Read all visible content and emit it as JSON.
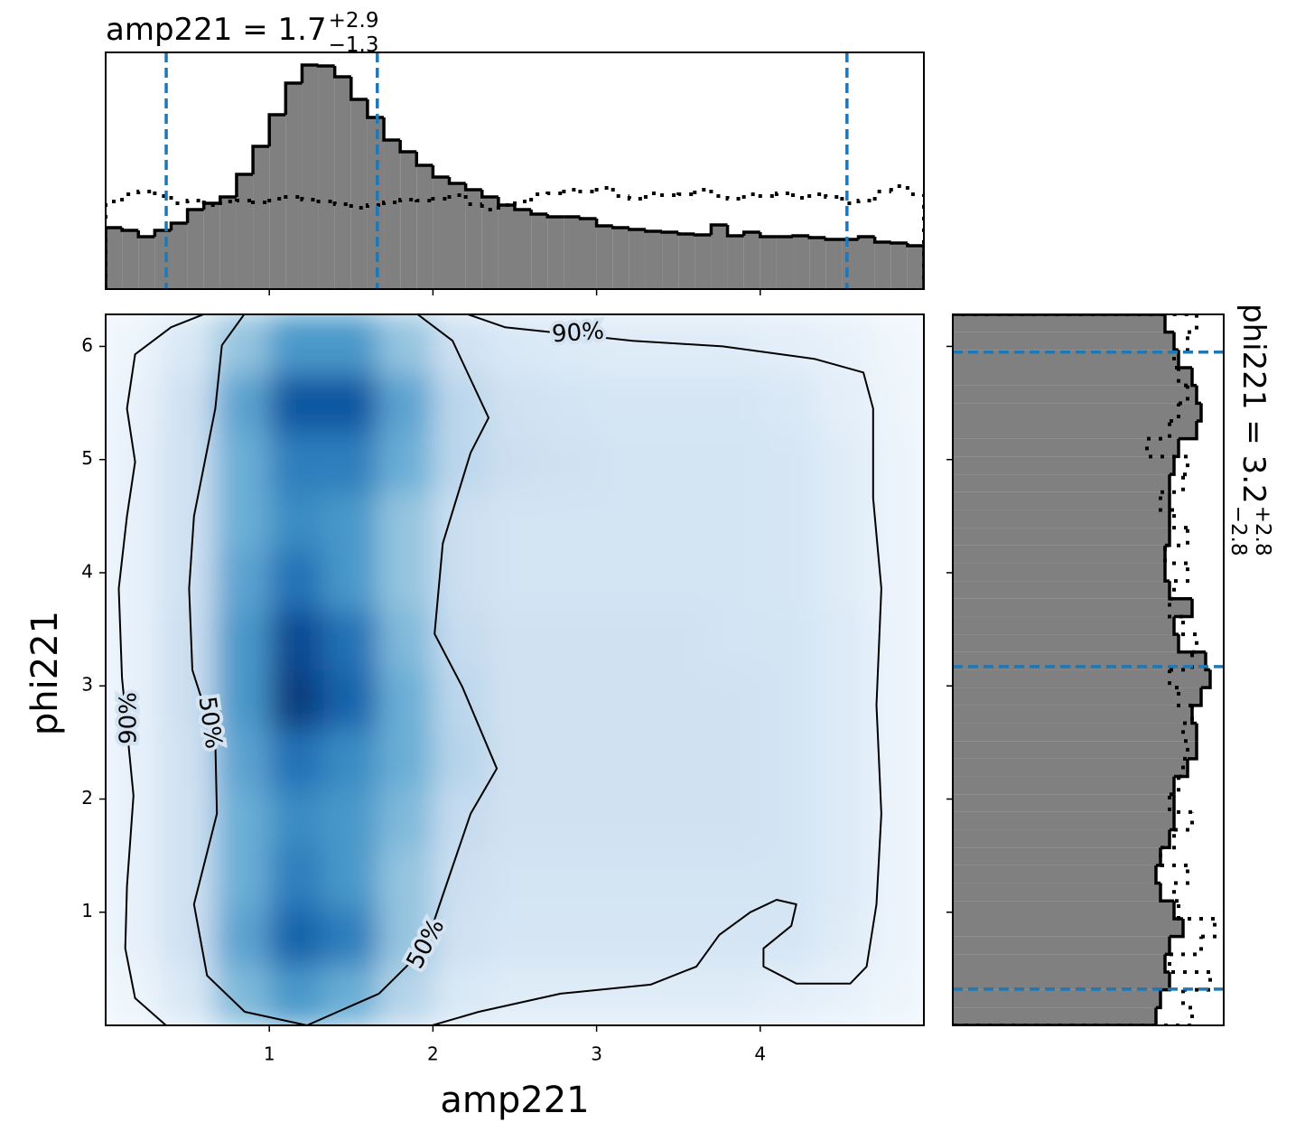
{
  "chart_data": [
    {
      "type": "histogram",
      "orientation": "vertical",
      "title": {
        "text": "amp221 = 1.7",
        "sup": "+2.9",
        "sub": "−1.3"
      },
      "bins": [
        0,
        0.1,
        0.2,
        0.3,
        0.4,
        0.5,
        0.6,
        0.7,
        0.8,
        0.9,
        1.0,
        1.1,
        1.2,
        1.3,
        1.4,
        1.5,
        1.6,
        1.7,
        1.8,
        1.9,
        2.0,
        2.1,
        2.2,
        2.3,
        2.4,
        2.5,
        2.6,
        2.7,
        2.8,
        2.9,
        3.0,
        3.1,
        3.2,
        3.3,
        3.4,
        3.5,
        3.6,
        3.7,
        3.8,
        3.9,
        4.0,
        4.1,
        4.2,
        4.3,
        4.4,
        4.5,
        4.6,
        4.7,
        4.8,
        4.9,
        5.0
      ],
      "values": [
        0.68,
        0.65,
        0.58,
        0.65,
        0.73,
        0.88,
        0.95,
        1.02,
        1.27,
        1.58,
        1.93,
        2.28,
        2.48,
        2.47,
        2.35,
        2.1,
        1.9,
        1.65,
        1.52,
        1.37,
        1.24,
        1.17,
        1.1,
        1.02,
        0.93,
        0.88,
        0.83,
        0.8,
        0.8,
        0.78,
        0.7,
        0.68,
        0.66,
        0.64,
        0.63,
        0.61,
        0.6,
        0.71,
        0.59,
        0.63,
        0.58,
        0.58,
        0.59,
        0.57,
        0.55,
        0.55,
        0.58,
        0.52,
        0.51,
        0.48
      ],
      "prior_values": [
        0.97,
        1.05,
        1.08,
        1.03,
        0.95,
        0.98,
        0.93,
        0.97,
        0.98,
        0.96,
        1.0,
        1.02,
        0.99,
        0.97,
        0.94,
        0.9,
        0.93,
        0.96,
        0.99,
        0.98,
        1.0,
        1.04,
        0.94,
        0.88,
        0.93,
        0.97,
        1.05,
        1.06,
        1.1,
        1.08,
        1.12,
        1.03,
        1.0,
        1.06,
        1.04,
        1.05,
        1.1,
        1.03,
        1.0,
        1.05,
        1.03,
        1.06,
        1.01,
        1.05,
        1.02,
        0.95,
        0.98,
        1.08,
        1.14,
        1.05
      ],
      "color": "#808080",
      "edgecolor": "#000000",
      "quantiles": [
        0.37,
        1.66,
        4.53
      ],
      "quantile_color": "#1f77b4",
      "xlim": [
        0,
        5
      ],
      "ylim": [
        0,
        2.62
      ]
    },
    {
      "type": "density",
      "xlabel": "amp221",
      "ylabel": "phi221",
      "xlim": [
        0,
        5
      ],
      "ylim": [
        0,
        6.283
      ],
      "xticks": [
        1,
        2,
        3,
        4
      ],
      "yticks": [
        1,
        2,
        3,
        4,
        5,
        6
      ],
      "xedges": [
        0,
        0.333,
        0.667,
        1,
        1.333,
        1.667,
        2,
        2.333,
        2.667,
        3,
        3.333,
        3.667,
        4,
        4.333,
        4.667,
        5
      ],
      "yedges": [
        0,
        0.524,
        1.047,
        1.571,
        2.094,
        2.618,
        3.142,
        3.665,
        4.189,
        4.712,
        5.236,
        5.76,
        6.283
      ],
      "z": [
        [
          0.05,
          0.15,
          0.45,
          0.6,
          0.5,
          0.3,
          0.15,
          0.12,
          0.12,
          0.12,
          0.12,
          0.12,
          0.1,
          0.08,
          0.05
        ],
        [
          0.08,
          0.2,
          0.55,
          0.8,
          0.7,
          0.4,
          0.2,
          0.17,
          0.17,
          0.17,
          0.17,
          0.17,
          0.17,
          0.12,
          0.06
        ],
        [
          0.08,
          0.2,
          0.5,
          0.7,
          0.6,
          0.4,
          0.22,
          0.18,
          0.18,
          0.18,
          0.18,
          0.18,
          0.18,
          0.13,
          0.06
        ],
        [
          0.08,
          0.2,
          0.5,
          0.65,
          0.6,
          0.45,
          0.25,
          0.2,
          0.2,
          0.2,
          0.2,
          0.2,
          0.18,
          0.13,
          0.06
        ],
        [
          0.08,
          0.2,
          0.55,
          0.75,
          0.65,
          0.5,
          0.3,
          0.2,
          0.2,
          0.2,
          0.2,
          0.2,
          0.18,
          0.13,
          0.06
        ],
        [
          0.08,
          0.22,
          0.6,
          0.95,
          0.8,
          0.5,
          0.28,
          0.2,
          0.2,
          0.2,
          0.2,
          0.2,
          0.18,
          0.13,
          0.06
        ],
        [
          0.08,
          0.22,
          0.6,
          0.9,
          0.75,
          0.45,
          0.25,
          0.2,
          0.2,
          0.2,
          0.2,
          0.18,
          0.18,
          0.13,
          0.06
        ],
        [
          0.08,
          0.2,
          0.55,
          0.75,
          0.6,
          0.4,
          0.22,
          0.18,
          0.18,
          0.18,
          0.18,
          0.18,
          0.17,
          0.12,
          0.06
        ],
        [
          0.08,
          0.2,
          0.5,
          0.65,
          0.6,
          0.4,
          0.22,
          0.18,
          0.18,
          0.18,
          0.18,
          0.18,
          0.17,
          0.12,
          0.06
        ],
        [
          0.08,
          0.2,
          0.5,
          0.7,
          0.7,
          0.5,
          0.28,
          0.22,
          0.2,
          0.18,
          0.18,
          0.18,
          0.17,
          0.12,
          0.06
        ],
        [
          0.07,
          0.2,
          0.55,
          0.85,
          0.85,
          0.55,
          0.28,
          0.2,
          0.18,
          0.17,
          0.17,
          0.17,
          0.15,
          0.1,
          0.05
        ],
        [
          0.05,
          0.15,
          0.4,
          0.6,
          0.6,
          0.4,
          0.2,
          0.15,
          0.13,
          0.12,
          0.12,
          0.12,
          0.1,
          0.08,
          0.04
        ]
      ],
      "zlim": [
        0,
        1
      ],
      "colors": [
        "#f7fbff",
        "#deebf7",
        "#c6dbef",
        "#9ecae1",
        "#6baed6",
        "#4292c6",
        "#2171b5",
        "#08519c",
        "#08306b"
      ],
      "contours": [
        {
          "label": "90%",
          "x": [
            0.4,
            0.18,
            0.12,
            0.13,
            0.17,
            0.1,
            0.08,
            0.13,
            0.18,
            0.13,
            0.18,
            0.4,
            0.68,
            2.12,
            2.44,
            3.22,
            3.77,
            4.33,
            4.63,
            4.69,
            4.69,
            4.74,
            4.71,
            4.74,
            4.71,
            4.65,
            4.55,
            4.22,
            4.02,
            4.02,
            4.19,
            4.22,
            4.1,
            3.94,
            3.75,
            3.61,
            3.33,
            2.78,
            2.28,
            1.9,
            0.4
          ],
          "y": [
            -0.04,
            0.24,
            0.68,
            1.23,
            2.03,
            3.07,
            3.86,
            4.5,
            4.98,
            5.45,
            5.93,
            6.17,
            6.33,
            6.33,
            6.17,
            6.05,
            6.0,
            5.89,
            5.77,
            5.45,
            4.66,
            3.86,
            2.83,
            1.87,
            1.07,
            0.52,
            0.37,
            0.37,
            0.52,
            0.68,
            0.88,
            1.07,
            1.11,
            1.0,
            0.8,
            0.52,
            0.36,
            0.28,
            0.12,
            -0.04,
            -0.04
          ]
        },
        {
          "label": "50%",
          "x": [
            1.67,
            1.23,
            0.85,
            0.62,
            0.54,
            0.68,
            0.67,
            0.53,
            0.51,
            0.54,
            0.67,
            0.71,
            0.85,
            1.9,
            2.12,
            2.34,
            2.23,
            2.06,
            2.01,
            2.18,
            2.39,
            2.23,
            2.06,
            1.95,
            1.67
          ],
          "y": [
            0.28,
            0.0,
            0.12,
            0.44,
            1.07,
            1.87,
            2.51,
            3.14,
            3.86,
            4.5,
            5.45,
            6.01,
            6.29,
            6.29,
            6.05,
            5.37,
            5.06,
            4.26,
            3.46,
            2.99,
            2.27,
            1.87,
            1.15,
            0.68,
            0.28
          ]
        }
      ]
    },
    {
      "type": "histogram",
      "orientation": "horizontal",
      "title": {
        "text": "phi221 = 3.2",
        "sup": "+2.8",
        "sub": "−2.8"
      },
      "bins": [
        0,
        0.157,
        0.314,
        0.471,
        0.628,
        0.785,
        0.942,
        1.1,
        1.257,
        1.414,
        1.571,
        1.728,
        1.885,
        2.042,
        2.199,
        2.356,
        2.513,
        2.67,
        2.827,
        2.985,
        3.142,
        3.299,
        3.456,
        3.613,
        3.77,
        3.927,
        4.084,
        4.241,
        4.398,
        4.555,
        4.712,
        4.869,
        5.027,
        5.184,
        5.341,
        5.498,
        5.655,
        5.812,
        5.969,
        6.126,
        6.283
      ],
      "values": [
        2.25,
        2.3,
        2.4,
        2.35,
        2.4,
        2.55,
        2.45,
        2.3,
        2.25,
        2.3,
        2.4,
        2.45,
        2.45,
        2.45,
        2.6,
        2.7,
        2.7,
        2.65,
        2.75,
        2.85,
        2.8,
        2.5,
        2.45,
        2.65,
        2.4,
        2.35,
        2.35,
        2.4,
        2.4,
        2.4,
        2.4,
        2.45,
        2.5,
        2.7,
        2.75,
        2.7,
        2.65,
        2.5,
        2.45,
        2.35
      ],
      "prior_values": [
        2.65,
        2.55,
        2.85,
        2.4,
        2.75,
        2.9,
        2.5,
        2.45,
        2.6,
        2.3,
        2.45,
        2.65,
        2.4,
        2.5,
        2.55,
        2.6,
        2.55,
        2.65,
        2.5,
        2.4,
        2.65,
        2.7,
        2.55,
        2.4,
        2.45,
        2.6,
        2.35,
        2.6,
        2.45,
        2.3,
        2.55,
        2.6,
        2.15,
        2.4,
        2.5,
        2.6,
        2.5,
        2.45,
        2.6,
        2.7
      ],
      "color": "#808080",
      "edgecolor": "#000000",
      "quantiles": [
        0.32,
        3.17,
        5.95
      ],
      "quantile_color": "#1f77b4",
      "xlim": [
        0,
        3.0
      ],
      "ylim": [
        0,
        6.283
      ]
    }
  ]
}
